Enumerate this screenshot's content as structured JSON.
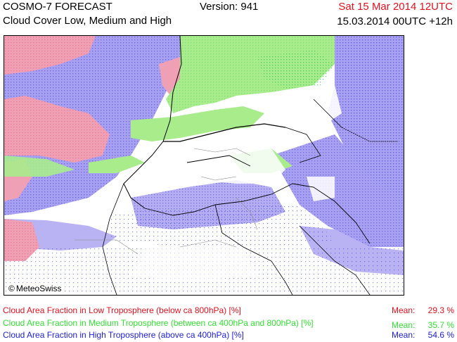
{
  "header": {
    "title": "COSMO-7 FORECAST",
    "subtitle": "Cloud Cover Low, Medium and High",
    "version": "Version: 941",
    "valid_date": "Sat 15 Mar 2014 12UTC",
    "run_info": "15.03.2014 00UTC +12h",
    "date_color": "#e8101e"
  },
  "map": {
    "copyright": "MeteoSwiss",
    "copyright_symbol": "©"
  },
  "legend": {
    "mean_label": "Mean:",
    "items": [
      {
        "label": "Cloud Area Fraction in Low Troposphere (below ca 800hPa) [%]",
        "mean": "29.3 %",
        "color": "#e8101e"
      },
      {
        "label": "Cloud Area Fraction in Medium Troposphere (between ca 400hPa and 800hPa) [%]",
        "mean": "35.7 %",
        "color": "#33e033"
      },
      {
        "label": "Cloud Area Fraction in High Troposphere (above ca 400hPa) [%]",
        "mean": "54.6 %",
        "color": "#2020e0"
      }
    ]
  },
  "colors": {
    "low_fill": "#f0a0b4",
    "medium_fill": "#a8ec8c",
    "high_fill": "#a8a0f0",
    "medium_dots": "#40d060",
    "high_dots": "#3434d8"
  }
}
